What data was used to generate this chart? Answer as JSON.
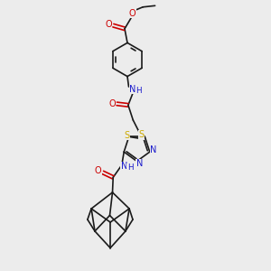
{
  "background_color": "#ececec",
  "figure_size": [
    3.0,
    3.0
  ],
  "dpi": 100,
  "bond_color": "#1a1a1a",
  "bond_lw": 1.2,
  "N_color": "#1818cc",
  "O_color": "#cc0000",
  "S_color": "#ccaa00",
  "font_size": 7.0,
  "xlim": [
    0,
    10
  ],
  "ylim": [
    0,
    10
  ]
}
